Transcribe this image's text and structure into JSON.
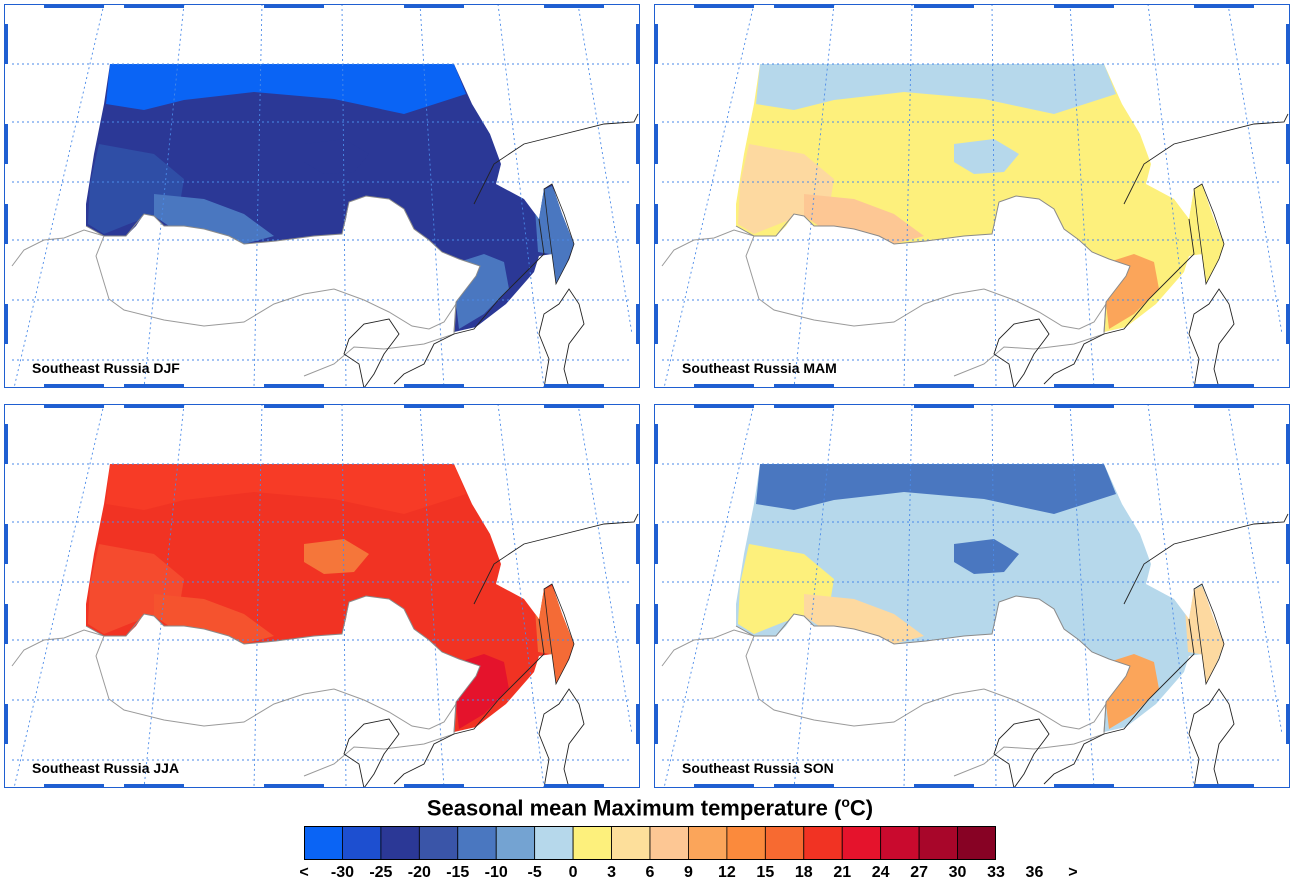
{
  "panels": [
    {
      "id": "djf",
      "label": "Southeast Russia DJF",
      "colors": {
        "north": "#0a64f5",
        "mid": "#2b3896",
        "west": "#2f4ea6",
        "southwest": "#4a77c0",
        "coast": "#4a77c0",
        "south": "#4a77c0",
        "patch": "#2b3896"
      }
    },
    {
      "id": "mam",
      "label": "Southeast Russia MAM",
      "colors": {
        "north": "#b6d8eb",
        "mid": "#fdf07c",
        "west": "#fdd9a0",
        "southwest": "#fdc794",
        "coast": "#fdf07c",
        "south": "#fba55a",
        "patch": "#b6d8eb"
      }
    },
    {
      "id": "jja",
      "label": "Southeast Russia JJA",
      "colors": {
        "north": "#f73b26",
        "mid": "#f13323",
        "west": "#f54b2e",
        "southwest": "#f5532e",
        "coast": "#f46b36",
        "south": "#e5132c",
        "patch": "#f5763a"
      }
    },
    {
      "id": "son",
      "label": "Southeast Russia SON",
      "colors": {
        "north": "#4a77c0",
        "mid": "#b6d8eb",
        "west": "#fdf07c",
        "southwest": "#fdd9a0",
        "coast": "#fdd9a0",
        "south": "#fba55a",
        "patch": "#4a77c0"
      }
    }
  ],
  "legend": {
    "title": "Seasonal mean Maximum temperature (",
    "title_sup": "o",
    "title_unit": "C)",
    "colors": [
      "#0a64f5",
      "#1d4fd0",
      "#2b3896",
      "#3a55a8",
      "#4a77c0",
      "#74a3d2",
      "#b6d8eb",
      "#fdf07c",
      "#fddf9b",
      "#fdc794",
      "#fba55a",
      "#fb8a3c",
      "#f76a31",
      "#f13323",
      "#e5132c",
      "#c90a2e",
      "#a8062a",
      "#870224"
    ],
    "ticks": [
      "<",
      "-30",
      "-25",
      "-20",
      "-15",
      "-10",
      "-5",
      "0",
      "3",
      "6",
      "9",
      "12",
      "15",
      "18",
      "21",
      "24",
      "27",
      "30",
      "33",
      "36",
      ">"
    ]
  }
}
